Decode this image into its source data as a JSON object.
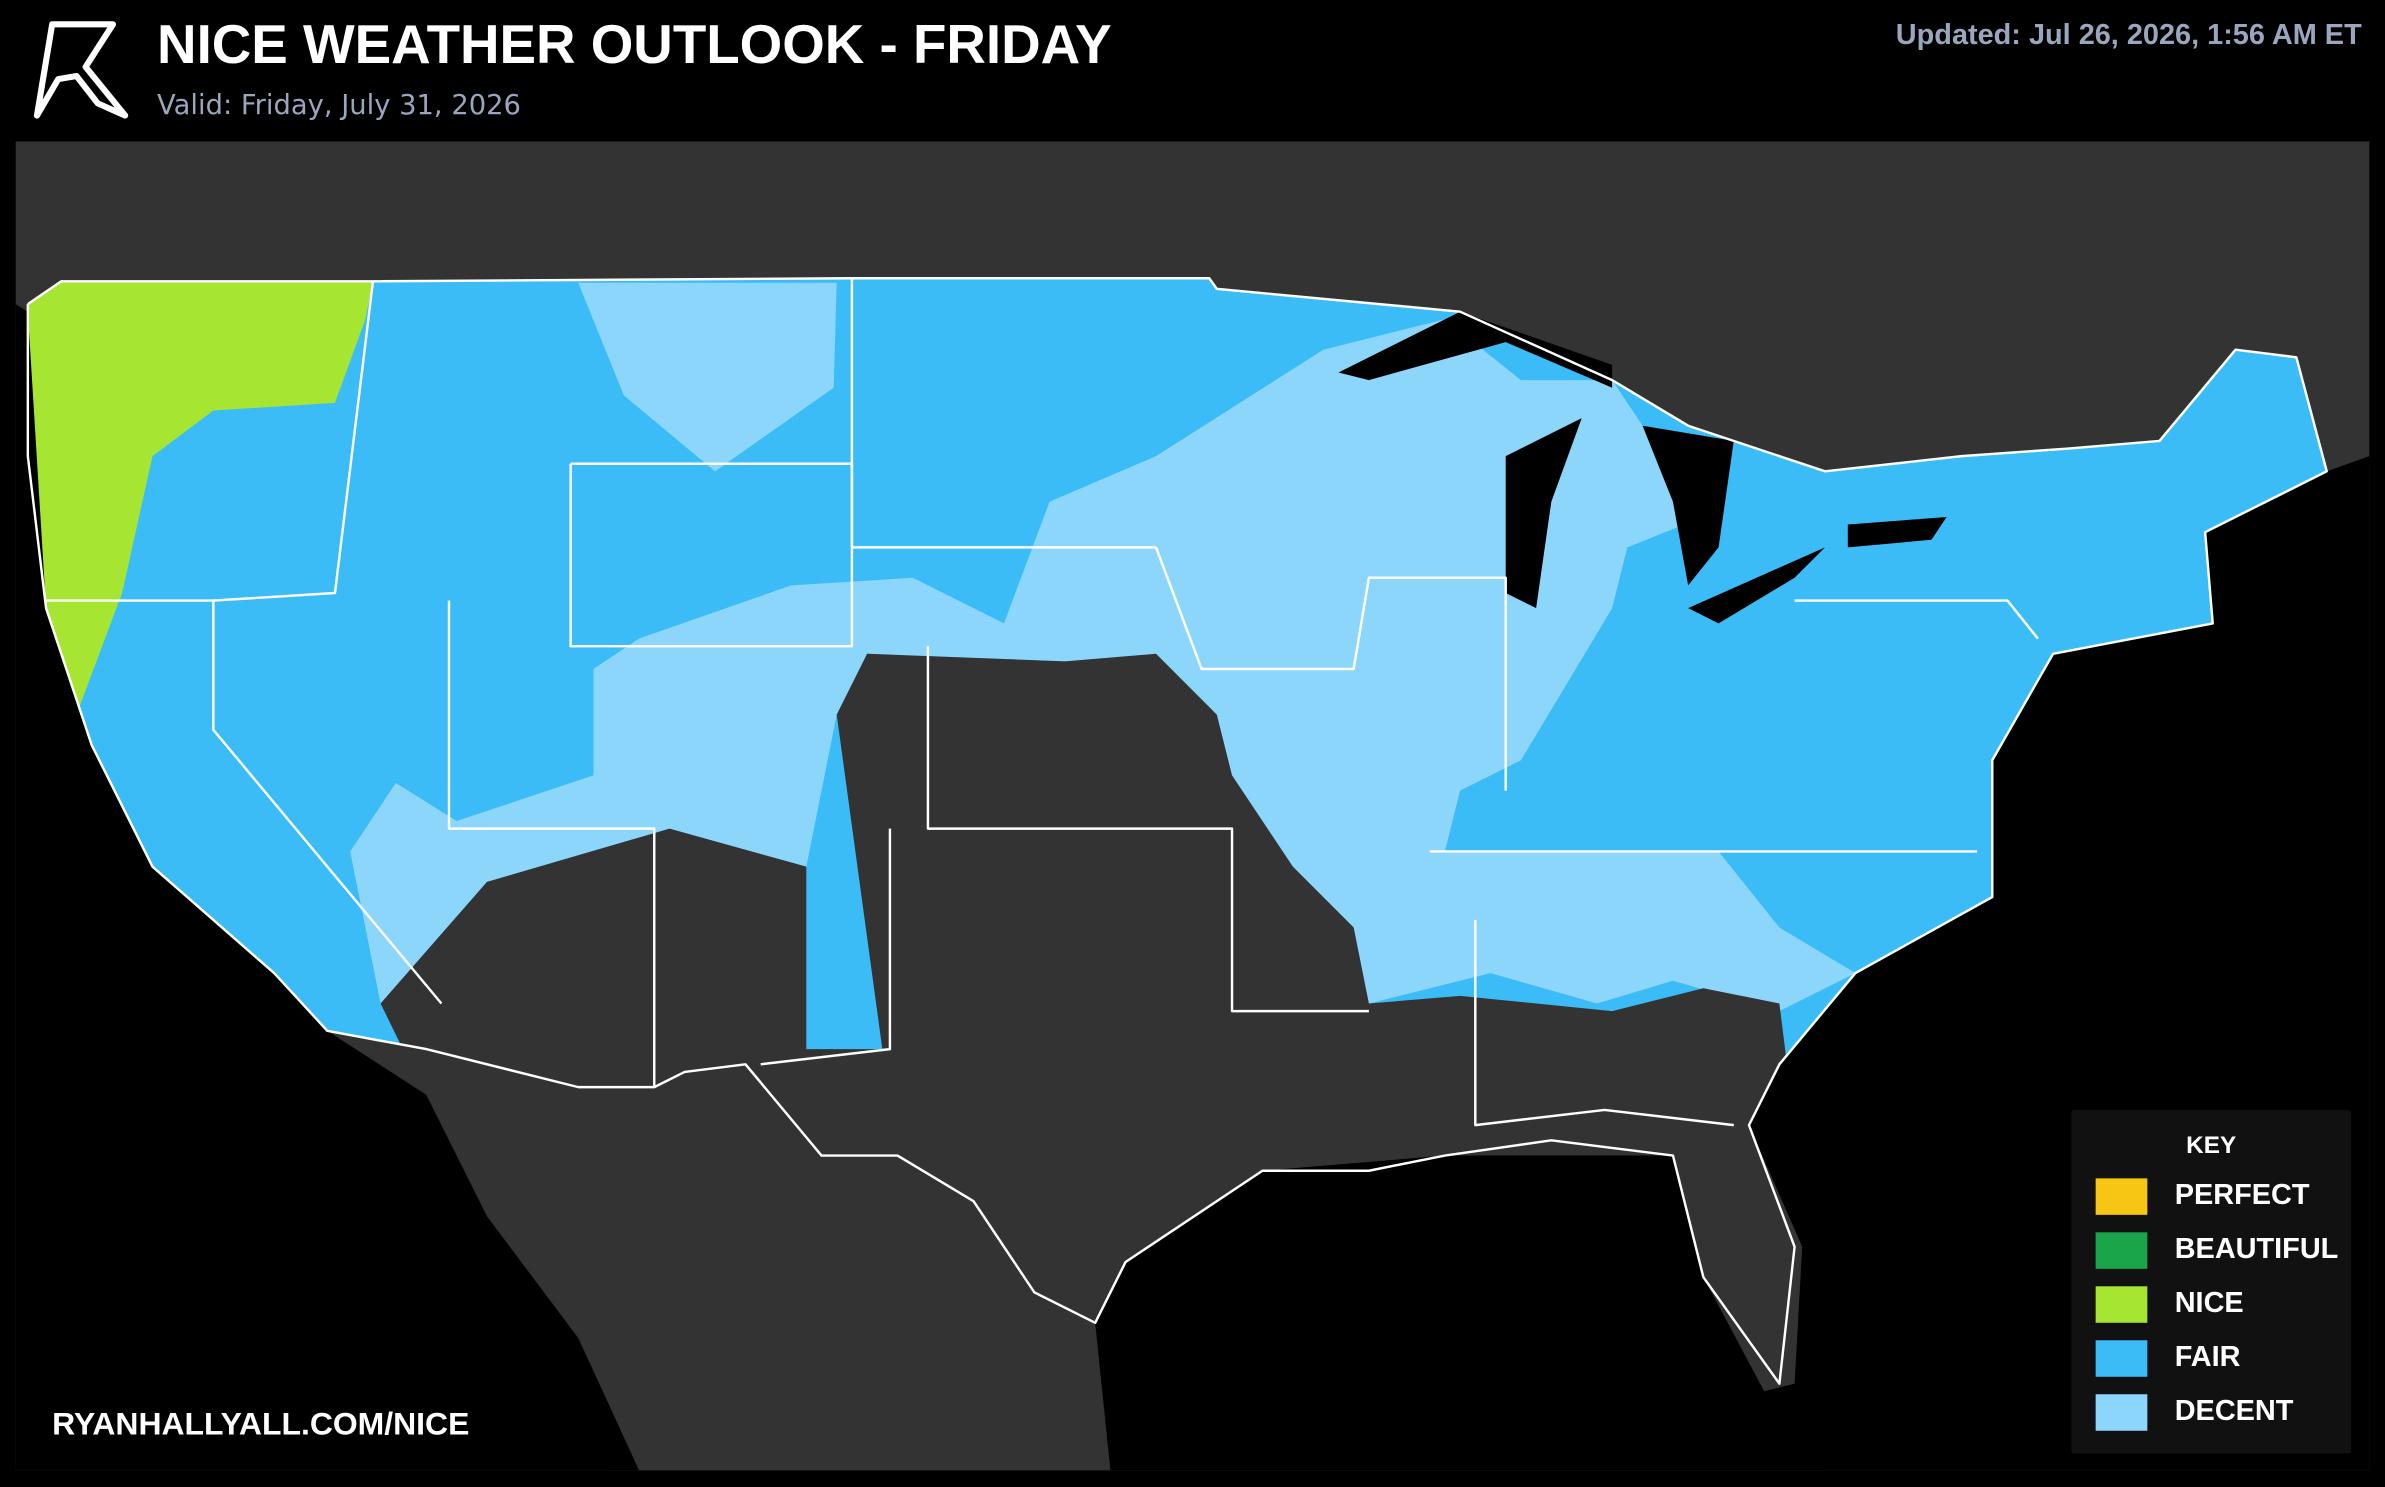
{
  "header": {
    "title": "NICE WEATHER OUTLOOK - FRIDAY",
    "subtitle": "Valid: Friday, July 31, 2026",
    "updated": "Updated: Jul 26, 2026, 1:56 AM ET"
  },
  "footer": {
    "url": "RYANHALLYALL.COM/NICE"
  },
  "legend": {
    "title": "KEY",
    "items": [
      {
        "label": "PERFECT",
        "color": "#f7c514"
      },
      {
        "label": "BEAUTIFUL",
        "color": "#1aa54b"
      },
      {
        "label": "NICE",
        "color": "#a6e633"
      },
      {
        "label": "FAIR",
        "color": "#3bbcf7"
      },
      {
        "label": "DECENT",
        "color": "#8dd6fb"
      }
    ]
  }
}
